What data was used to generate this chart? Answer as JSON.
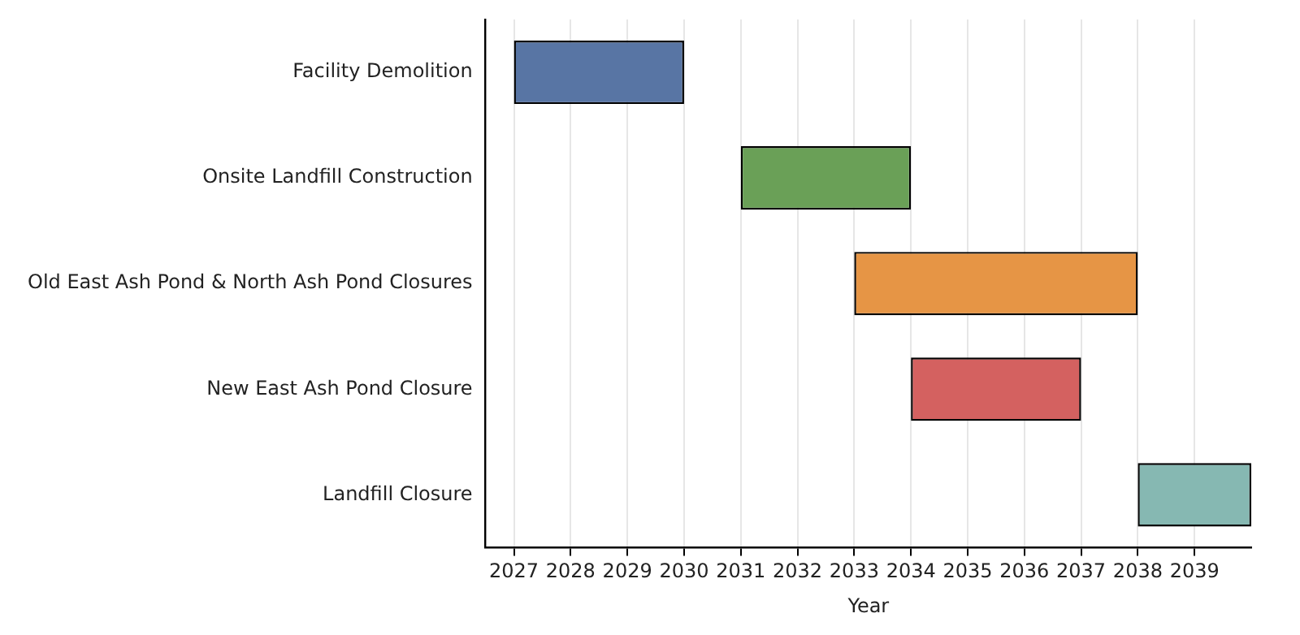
{
  "chart_data": {
    "type": "bar",
    "orientation": "horizontal",
    "xlabel": "Year",
    "categories": [
      "Facility Demolition",
      "Onsite Landfill Construction",
      "Old East Ash Pond & North Ash Pond Closures",
      "New East Ash Pond Closure",
      "Landfill Closure"
    ],
    "base": [
      2027,
      2031,
      2033,
      2034,
      2038
    ],
    "values": [
      3,
      3,
      5,
      3,
      2
    ],
    "colors": [
      "#5875a4",
      "#6aa057",
      "#e69545",
      "#d46160",
      "#86b8b2"
    ],
    "xlim": [
      2026.5,
      2040
    ],
    "xticks": [
      2027,
      2028,
      2029,
      2030,
      2031,
      2032,
      2033,
      2034,
      2035,
      2036,
      2037,
      2038,
      2039
    ],
    "grid": "x"
  }
}
